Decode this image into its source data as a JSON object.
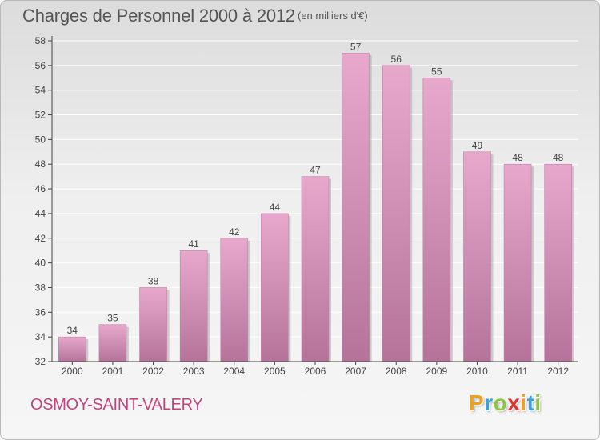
{
  "header": {
    "title": "Charges de Personnel 2000 à 2012",
    "subtitle": "(en milliers d'€)"
  },
  "footer": {
    "commune": "OSMOY-SAINT-VALERY",
    "brand_letters": [
      {
        "char": "P",
        "color": "#f0a020"
      },
      {
        "char": "r",
        "color": "#3aa0d8"
      },
      {
        "char": "o",
        "color": "#8cc63f"
      },
      {
        "char": "x",
        "color": "#e2312d"
      },
      {
        "char": "i",
        "color": "#f0a020"
      },
      {
        "char": "t",
        "color": "#3aa0d8"
      },
      {
        "char": "i",
        "color": "#8cc63f"
      }
    ]
  },
  "colors": {
    "bar_top": "#e8a8cc",
    "bar_bottom": "#b5739a",
    "bar_shadow": "#9a9a9a",
    "axis": "#444444",
    "grid": "#ffffff",
    "label": "#444444"
  },
  "chart_data": {
    "type": "bar",
    "categories": [
      "2000",
      "2001",
      "2002",
      "2003",
      "2004",
      "2005",
      "2006",
      "2007",
      "2008",
      "2009",
      "2010",
      "2011",
      "2012"
    ],
    "values": [
      34,
      35,
      38,
      41,
      42,
      44,
      47,
      57,
      56,
      55,
      49,
      48,
      48
    ],
    "data_labels": [
      "34",
      "35",
      "38",
      "41",
      "42",
      "44",
      "47",
      "57",
      "56",
      "55",
      "49",
      "48",
      "48"
    ],
    "ylim": [
      32,
      58
    ],
    "yticks": [
      32,
      34,
      36,
      38,
      40,
      42,
      44,
      46,
      48,
      50,
      52,
      54,
      56,
      58
    ],
    "grid": true,
    "legend": "none"
  }
}
